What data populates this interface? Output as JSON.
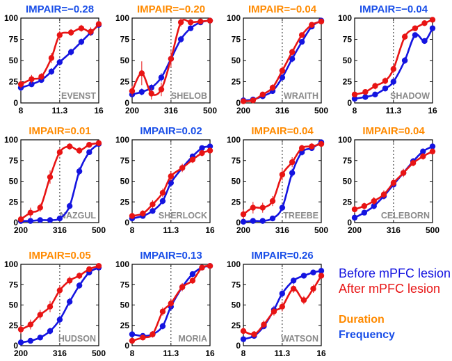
{
  "colors": {
    "before": "#1414e0",
    "after": "#e81414",
    "duration": "#ff8a00",
    "frequency": "#1a4fe8",
    "label_gray": "#8a8a8a"
  },
  "legend": {
    "before": "Before mPFC lesion",
    "after": "After mPFC lesion",
    "duration": "Duration",
    "frequency": "Frequency"
  },
  "chart_data": [
    {
      "type": "line",
      "title": "IMPAIR=−0.28",
      "modality": "frequency",
      "subject": "EVENST",
      "xscale": "log",
      "xlim": [
        8,
        16
      ],
      "ylim": [
        0,
        100
      ],
      "xticks": [
        8,
        11.3,
        16
      ],
      "xtick_labels": [
        "8",
        "11.3",
        "16"
      ],
      "yticks": [
        0,
        25,
        50,
        75,
        100
      ],
      "midline": 11.3,
      "series": [
        {
          "name": "Before mPFC lesion",
          "x": [
            8,
            8.8,
            9.6,
            10.5,
            11.3,
            12.5,
            13.7,
            14.9,
            16
          ],
          "y": [
            18,
            22,
            27,
            37,
            48,
            60,
            72,
            83,
            92
          ],
          "err": [
            4,
            3,
            3,
            4,
            4,
            4,
            4,
            3,
            2
          ]
        },
        {
          "name": "After mPFC lesion",
          "x": [
            8,
            8.8,
            9.6,
            10.5,
            11.3,
            12.5,
            13.7,
            14.9,
            16
          ],
          "y": [
            22,
            28,
            31,
            53,
            80,
            83,
            88,
            84,
            93
          ],
          "err": [
            5,
            5,
            4,
            6,
            5,
            4,
            4,
            5,
            3
          ]
        }
      ]
    },
    {
      "type": "line",
      "title": "IMPAIR=−0.20",
      "modality": "duration",
      "subject": "SHELOB",
      "xscale": "log",
      "xlim": [
        200,
        500
      ],
      "ylim": [
        0,
        100
      ],
      "xticks": [
        200,
        316,
        500
      ],
      "xtick_labels": [
        "200",
        "316",
        "500"
      ],
      "yticks": [
        0,
        25,
        50,
        75,
        100
      ],
      "midline": 316,
      "series": [
        {
          "name": "Before mPFC lesion",
          "x": [
            200,
            224,
            251,
            282,
            316,
            355,
            398,
            447,
            500
          ],
          "y": [
            10,
            13,
            18,
            30,
            52,
            75,
            88,
            95,
            97
          ],
          "err": [
            3,
            4,
            4,
            5,
            5,
            4,
            3,
            2,
            2
          ]
        },
        {
          "name": "After mPFC lesion",
          "x": [
            200,
            224,
            251,
            282,
            316,
            355,
            398,
            447,
            500
          ],
          "y": [
            14,
            35,
            11,
            16,
            52,
            95,
            95,
            96,
            97
          ],
          "err": [
            6,
            14,
            7,
            8,
            10,
            5,
            4,
            3,
            2
          ]
        }
      ]
    },
    {
      "type": "line",
      "title": "IMPAIR=−0.04",
      "modality": "duration",
      "subject": "WRAITH",
      "xscale": "log",
      "xlim": [
        200,
        500
      ],
      "ylim": [
        0,
        100
      ],
      "xticks": [
        200,
        316,
        500
      ],
      "xtick_labels": [
        "200",
        "316",
        "500"
      ],
      "yticks": [
        0,
        25,
        50,
        75,
        100
      ],
      "midline": 316,
      "series": [
        {
          "name": "Before mPFC lesion",
          "x": [
            200,
            224,
            251,
            282,
            316,
            355,
            398,
            447,
            500
          ],
          "y": [
            3,
            4,
            8,
            14,
            30,
            52,
            72,
            90,
            97
          ],
          "err": [
            2,
            2,
            3,
            3,
            4,
            4,
            3,
            2,
            2
          ]
        },
        {
          "name": "After mPFC lesion",
          "x": [
            200,
            224,
            251,
            282,
            316,
            355,
            398,
            447,
            500
          ],
          "y": [
            2,
            3,
            10,
            18,
            38,
            60,
            80,
            92,
            96
          ],
          "err": [
            2,
            2,
            3,
            4,
            5,
            4,
            3,
            3,
            2
          ]
        }
      ]
    },
    {
      "type": "line",
      "title": "IMPAIR=−0.04",
      "modality": "frequency",
      "subject": "SHADOW",
      "xscale": "log",
      "xlim": [
        8,
        16
      ],
      "ylim": [
        0,
        100
      ],
      "xticks": [
        8,
        11.3,
        16
      ],
      "xtick_labels": [
        "8",
        "11.3",
        "16"
      ],
      "yticks": [
        0,
        25,
        50,
        75,
        100
      ],
      "midline": 11.3,
      "series": [
        {
          "name": "Before mPFC lesion",
          "x": [
            8,
            8.8,
            9.6,
            10.5,
            11.3,
            12.5,
            13.7,
            14.9,
            16
          ],
          "y": [
            5,
            7,
            10,
            17,
            25,
            50,
            80,
            73,
            88
          ],
          "err": [
            2,
            2,
            3,
            3,
            4,
            4,
            3,
            3,
            2
          ]
        },
        {
          "name": "After mPFC lesion",
          "x": [
            8,
            8.8,
            9.6,
            10.5,
            11.3,
            12.5,
            13.7,
            14.9,
            16
          ],
          "y": [
            10,
            13,
            20,
            26,
            40,
            78,
            88,
            94,
            98
          ],
          "err": [
            3,
            3,
            4,
            4,
            5,
            4,
            3,
            2,
            2
          ]
        }
      ]
    },
    {
      "type": "line",
      "title": "IMPAIR=0.01",
      "modality": "duration",
      "subject": "NAZGUL",
      "xscale": "log",
      "xlim": [
        200,
        500
      ],
      "ylim": [
        0,
        100
      ],
      "xticks": [
        200,
        316,
        500
      ],
      "xtick_labels": [
        "200",
        "316",
        "500"
      ],
      "yticks": [
        0,
        25,
        50,
        75,
        100
      ],
      "midline": 316,
      "series": [
        {
          "name": "Before mPFC lesion",
          "x": [
            200,
            224,
            251,
            282,
            316,
            355,
            398,
            447,
            500
          ],
          "y": [
            2,
            2,
            3,
            3,
            5,
            20,
            62,
            85,
            95
          ],
          "err": [
            1,
            1,
            2,
            2,
            3,
            4,
            5,
            3,
            2
          ]
        },
        {
          "name": "After mPFC lesion",
          "x": [
            200,
            224,
            251,
            282,
            316,
            355,
            398,
            447,
            500
          ],
          "y": [
            4,
            12,
            18,
            55,
            85,
            92,
            87,
            94,
            96
          ],
          "err": [
            3,
            6,
            5,
            8,
            5,
            4,
            4,
            3,
            2
          ]
        }
      ]
    },
    {
      "type": "line",
      "title": "IMPAIR=0.02",
      "modality": "frequency",
      "subject": "SHERLOCK",
      "xscale": "log",
      "xlim": [
        8,
        16
      ],
      "ylim": [
        0,
        100
      ],
      "xticks": [
        8,
        11.3,
        16
      ],
      "xtick_labels": [
        "8",
        "11.3",
        "16"
      ],
      "yticks": [
        0,
        25,
        50,
        75,
        100
      ],
      "midline": 11.3,
      "series": [
        {
          "name": "Before mPFC lesion",
          "x": [
            8,
            8.8,
            9.6,
            10.5,
            11.3,
            12.5,
            13.7,
            14.9,
            16
          ],
          "y": [
            5,
            8,
            14,
            26,
            48,
            66,
            80,
            90,
            92
          ],
          "err": [
            2,
            3,
            3,
            4,
            5,
            4,
            3,
            3,
            2
          ]
        },
        {
          "name": "After mPFC lesion",
          "x": [
            8,
            8.8,
            9.6,
            10.5,
            11.3,
            12.5,
            13.7,
            14.9,
            16
          ],
          "y": [
            8,
            11,
            22,
            36,
            56,
            66,
            76,
            84,
            87
          ],
          "err": [
            3,
            4,
            5,
            5,
            6,
            5,
            4,
            4,
            3
          ]
        }
      ]
    },
    {
      "type": "line",
      "title": "IMPAIR=0.04",
      "modality": "duration",
      "subject": "TREEBE",
      "xscale": "log",
      "xlim": [
        200,
        500
      ],
      "ylim": [
        0,
        100
      ],
      "xticks": [
        200,
        316,
        500
      ],
      "xtick_labels": [
        "200",
        "316",
        "500"
      ],
      "yticks": [
        0,
        25,
        50,
        75,
        100
      ],
      "midline": 316,
      "series": [
        {
          "name": "Before mPFC lesion",
          "x": [
            200,
            224,
            251,
            282,
            316,
            355,
            398,
            447,
            500
          ],
          "y": [
            1,
            2,
            2,
            5,
            18,
            60,
            85,
            90,
            97
          ],
          "err": [
            1,
            1,
            1,
            2,
            4,
            5,
            4,
            3,
            2
          ]
        },
        {
          "name": "After mPFC lesion",
          "x": [
            200,
            224,
            251,
            282,
            316,
            355,
            398,
            447,
            500
          ],
          "y": [
            10,
            18,
            18,
            26,
            58,
            73,
            90,
            92,
            95
          ],
          "err": [
            6,
            7,
            6,
            6,
            7,
            6,
            4,
            4,
            3
          ]
        }
      ]
    },
    {
      "type": "line",
      "title": "IMPAIR=0.04",
      "modality": "duration",
      "subject": "CELEBORN",
      "xscale": "log",
      "xlim": [
        200,
        500
      ],
      "ylim": [
        0,
        100
      ],
      "xticks": [
        200,
        316,
        500
      ],
      "xtick_labels": [
        "200",
        "316",
        "500"
      ],
      "yticks": [
        0,
        25,
        50,
        75,
        100
      ],
      "midline": 316,
      "series": [
        {
          "name": "Before mPFC lesion",
          "x": [
            200,
            224,
            251,
            282,
            316,
            355,
            398,
            447,
            500
          ],
          "y": [
            6,
            12,
            20,
            32,
            46,
            60,
            74,
            86,
            92
          ],
          "err": [
            3,
            3,
            4,
            4,
            5,
            4,
            4,
            3,
            2
          ]
        },
        {
          "name": "After mPFC lesion",
          "x": [
            200,
            224,
            251,
            282,
            316,
            355,
            398,
            447,
            500
          ],
          "y": [
            16,
            20,
            26,
            34,
            48,
            60,
            72,
            80,
            86
          ],
          "err": [
            4,
            4,
            5,
            5,
            5,
            5,
            4,
            4,
            3
          ]
        }
      ]
    },
    {
      "type": "line",
      "title": "IMPAIR=0.05",
      "modality": "duration",
      "subject": "HUDSON",
      "xscale": "log",
      "xlim": [
        200,
        500
      ],
      "ylim": [
        0,
        100
      ],
      "xticks": [
        200,
        316,
        500
      ],
      "xtick_labels": [
        "200",
        "316",
        "500"
      ],
      "yticks": [
        0,
        25,
        50,
        75,
        100
      ],
      "midline": 316,
      "series": [
        {
          "name": "Before mPFC lesion",
          "x": [
            200,
            224,
            251,
            282,
            316,
            355,
            398,
            447,
            500
          ],
          "y": [
            4,
            6,
            10,
            18,
            32,
            54,
            74,
            90,
            96
          ],
          "err": [
            2,
            2,
            3,
            4,
            5,
            5,
            4,
            3,
            2
          ]
        },
        {
          "name": "After mPFC lesion",
          "x": [
            200,
            224,
            251,
            282,
            316,
            355,
            398,
            447,
            500
          ],
          "y": [
            20,
            26,
            38,
            48,
            68,
            80,
            86,
            94,
            98
          ],
          "err": [
            5,
            6,
            6,
            7,
            6,
            5,
            4,
            3,
            2
          ]
        }
      ]
    },
    {
      "type": "line",
      "title": "IMPAIR=0.13",
      "modality": "frequency",
      "subject": "MORIA",
      "xscale": "log",
      "xlim": [
        8,
        16
      ],
      "ylim": [
        0,
        100
      ],
      "xticks": [
        8,
        11.3,
        16
      ],
      "xtick_labels": [
        "8",
        "11.3",
        "16"
      ],
      "yticks": [
        0,
        25,
        50,
        75,
        100
      ],
      "midline": 11.3,
      "series": [
        {
          "name": "Before mPFC lesion",
          "x": [
            8,
            8.8,
            9.6,
            10.5,
            11.3,
            12.5,
            13.7,
            14.9,
            16
          ],
          "y": [
            14,
            12,
            14,
            24,
            48,
            72,
            88,
            96,
            98
          ],
          "err": [
            3,
            3,
            3,
            4,
            5,
            4,
            3,
            2,
            2
          ]
        },
        {
          "name": "After mPFC lesion",
          "x": [
            8,
            8.8,
            9.6,
            10.5,
            11.3,
            12.5,
            13.7,
            14.9,
            16
          ],
          "y": [
            6,
            10,
            14,
            42,
            52,
            72,
            80,
            96,
            98
          ],
          "err": [
            3,
            3,
            4,
            5,
            6,
            5,
            4,
            3,
            2
          ]
        }
      ]
    },
    {
      "type": "line",
      "title": "IMPAIR=0.26",
      "modality": "frequency",
      "subject": "WATSON",
      "xscale": "log",
      "xlim": [
        8,
        16
      ],
      "ylim": [
        0,
        100
      ],
      "xticks": [
        8,
        11.3,
        16
      ],
      "xtick_labels": [
        "8",
        "11.3",
        "16"
      ],
      "yticks": [
        0,
        25,
        50,
        75,
        100
      ],
      "midline": 11.3,
      "series": [
        {
          "name": "Before mPFC lesion",
          "x": [
            8,
            8.8,
            9.6,
            10.5,
            11.3,
            12.5,
            13.7,
            14.9,
            16
          ],
          "y": [
            8,
            12,
            24,
            44,
            64,
            80,
            86,
            90,
            92
          ],
          "err": [
            3,
            3,
            4,
            5,
            5,
            4,
            3,
            3,
            2
          ]
        },
        {
          "name": "After mPFC lesion",
          "x": [
            8,
            8.8,
            9.6,
            10.5,
            11.3,
            12.5,
            13.7,
            14.9,
            16
          ],
          "y": [
            18,
            14,
            26,
            42,
            48,
            70,
            56,
            70,
            86
          ],
          "err": [
            4,
            4,
            5,
            5,
            6,
            5,
            5,
            5,
            3
          ]
        }
      ]
    }
  ]
}
